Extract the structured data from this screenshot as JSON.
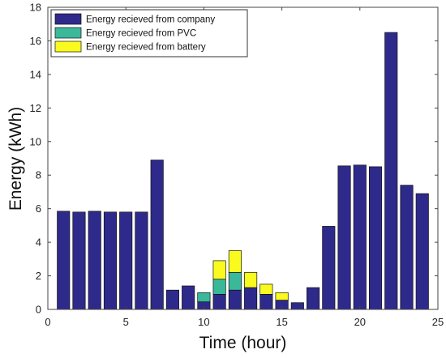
{
  "chart_data": {
    "type": "bar",
    "stacked": true,
    "xlabel": "Time (hour)",
    "ylabel": "Energy (kWh)",
    "xlim": [
      0,
      25
    ],
    "ylim": [
      0,
      18
    ],
    "xticks": [
      "0",
      "5",
      "10",
      "15",
      "20",
      "25"
    ],
    "yticks": [
      "0",
      "2",
      "4",
      "6",
      "8",
      "10",
      "12",
      "14",
      "16",
      "18"
    ],
    "grid": false,
    "legend_position": "top-left",
    "x": [
      1,
      2,
      3,
      4,
      5,
      6,
      7,
      8,
      9,
      10,
      11,
      12,
      13,
      14,
      15,
      16,
      17,
      18,
      19,
      20,
      21,
      22,
      23,
      24
    ],
    "series": [
      {
        "name": "Energy recieved from company",
        "color": "#2e2a8c",
        "values": [
          5.85,
          5.8,
          5.85,
          5.8,
          5.8,
          5.8,
          8.9,
          1.15,
          1.4,
          0.45,
          0.9,
          1.15,
          1.3,
          0.9,
          0.55,
          0.4,
          1.3,
          4.95,
          8.55,
          8.6,
          8.5,
          16.5,
          7.4,
          6.9
        ]
      },
      {
        "name": "Energy recieved from PVC",
        "color": "#3ab89a",
        "values": [
          0,
          0,
          0,
          0,
          0,
          0,
          0,
          0,
          0,
          0.55,
          0.9,
          1.05,
          0,
          0,
          0,
          0,
          0,
          0,
          0,
          0,
          0,
          0,
          0,
          0
        ]
      },
      {
        "name": "Energy recieved from battery",
        "color": "#fafa1e",
        "values": [
          0,
          0,
          0,
          0,
          0,
          0,
          0,
          0,
          0,
          0,
          1.1,
          1.3,
          0.9,
          0.6,
          0.45,
          0,
          0,
          0,
          0,
          0,
          0,
          0,
          0,
          0
        ]
      }
    ]
  }
}
